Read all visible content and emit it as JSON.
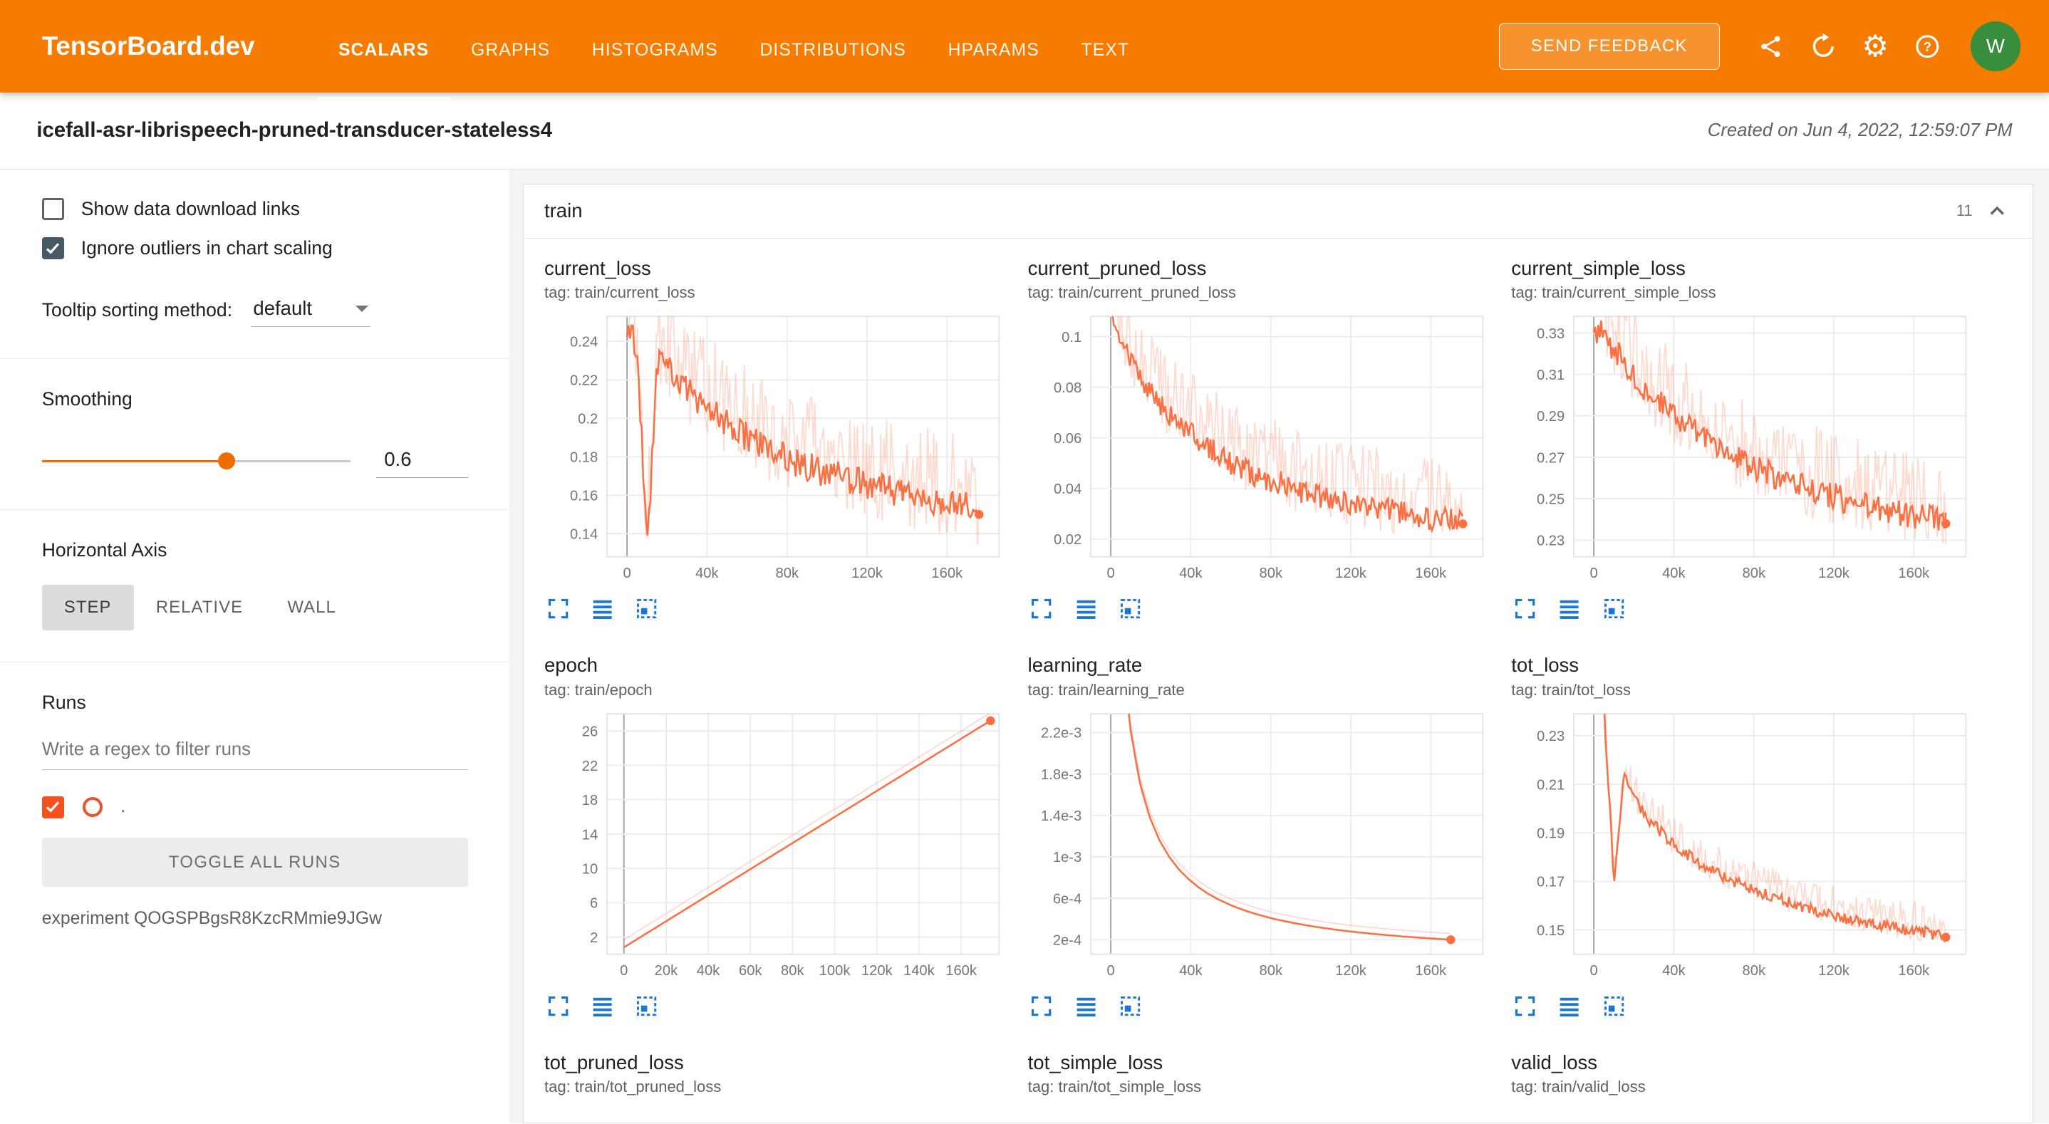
{
  "header": {
    "brand": "TensorBoard.dev",
    "tabs": [
      {
        "label": "SCALARS",
        "active": true
      },
      {
        "label": "GRAPHS",
        "active": false
      },
      {
        "label": "HISTOGRAMS",
        "active": false
      },
      {
        "label": "DISTRIBUTIONS",
        "active": false
      },
      {
        "label": "HPARAMS",
        "active": false
      },
      {
        "label": "TEXT",
        "active": false
      }
    ],
    "feedback_label": "SEND FEEDBACK",
    "avatar_initial": "W"
  },
  "subheader": {
    "title": "icefall-asr-librispeech-pruned-transducer-stateless4",
    "created": "Created on Jun 4, 2022, 12:59:07 PM"
  },
  "sidebar": {
    "checkboxes": [
      {
        "label": "Show data download links",
        "checked": false
      },
      {
        "label": "Ignore outliers in chart scaling",
        "checked": true
      }
    ],
    "tooltip_sorting": {
      "label": "Tooltip sorting method:",
      "value": "default"
    },
    "smoothing": {
      "label": "Smoothing",
      "value": "0.6"
    },
    "horizontal_axis": {
      "label": "Horizontal Axis",
      "options": [
        "STEP",
        "RELATIVE",
        "WALL"
      ],
      "selected": "STEP"
    },
    "runs": {
      "label": "Runs",
      "filter_placeholder": "Write a regex to filter runs",
      "run_label": ".",
      "run_checked": true,
      "toggle_all_label": "TOGGLE ALL RUNS",
      "experiment": "experiment QOGSPBgsR8KzcRMmie9JGw"
    }
  },
  "main": {
    "section": {
      "title": "train",
      "count": "11"
    },
    "charts": [
      {
        "name": "current_loss",
        "tag": "tag: train/current_loss",
        "x_domain": [
          -10000,
          186000
        ],
        "x_end": 176000,
        "y_domain": [
          0.128,
          0.253
        ],
        "y_ticks": [
          [
            0.24,
            "0.24"
          ],
          [
            0.22,
            "0.22"
          ],
          [
            0.2,
            "0.2"
          ],
          [
            0.18,
            "0.18"
          ],
          [
            0.16,
            "0.16"
          ],
          [
            0.14,
            "0.14"
          ]
        ],
        "x_ticks": [
          [
            0,
            "0"
          ],
          [
            40000,
            "40k"
          ],
          [
            80000,
            "80k"
          ],
          [
            120000,
            "120k"
          ],
          [
            160000,
            "160k"
          ]
        ],
        "anchors": [
          0.246,
          0.238,
          0.132,
          0.23,
          0.226,
          0.22,
          0.215,
          0.21,
          0.206,
          0.201,
          0.197,
          0.193,
          0.19,
          0.187,
          0.184,
          0.181,
          0.179,
          0.177,
          0.175,
          0.173,
          0.171,
          0.17,
          0.168,
          0.167,
          0.165,
          0.164,
          0.163,
          0.162,
          0.16,
          0.159,
          0.158,
          0.157,
          0.156,
          0.155,
          0.154,
          0.15
        ],
        "noise": 0.013,
        "raw_bias": 0.01,
        "end_dot": true
      },
      {
        "name": "current_pruned_loss",
        "tag": "tag: train/current_pruned_loss",
        "x_domain": [
          -10000,
          186000
        ],
        "x_end": 176000,
        "y_domain": [
          0.013,
          0.108
        ],
        "y_ticks": [
          [
            0.1,
            "0.1"
          ],
          [
            0.08,
            "0.08"
          ],
          [
            0.06,
            "0.06"
          ],
          [
            0.04,
            "0.04"
          ],
          [
            0.02,
            "0.02"
          ]
        ],
        "x_ticks": [
          [
            0,
            "0"
          ],
          [
            40000,
            "40k"
          ],
          [
            80000,
            "80k"
          ],
          [
            120000,
            "120k"
          ],
          [
            160000,
            "160k"
          ]
        ],
        "anchors": [
          0.112,
          0.1,
          0.091,
          0.084,
          0.078,
          0.073,
          0.068,
          0.064,
          0.061,
          0.058,
          0.055,
          0.053,
          0.05,
          0.048,
          0.046,
          0.045,
          0.043,
          0.042,
          0.04,
          0.039,
          0.038,
          0.037,
          0.036,
          0.035,
          0.034,
          0.033,
          0.032,
          0.032,
          0.031,
          0.03,
          0.03,
          0.029,
          0.028,
          0.028,
          0.027,
          0.026
        ],
        "noise": 0.008,
        "raw_bias": 0.008,
        "end_dot": true
      },
      {
        "name": "current_simple_loss",
        "tag": "tag: train/current_simple_loss",
        "x_domain": [
          -10000,
          186000
        ],
        "x_end": 176000,
        "y_domain": [
          0.222,
          0.338
        ],
        "y_ticks": [
          [
            0.33,
            "0.33"
          ],
          [
            0.31,
            "0.31"
          ],
          [
            0.29,
            "0.29"
          ],
          [
            0.27,
            "0.27"
          ],
          [
            0.25,
            "0.25"
          ],
          [
            0.23,
            "0.23"
          ]
        ],
        "x_ticks": [
          [
            0,
            "0"
          ],
          [
            40000,
            "40k"
          ],
          [
            80000,
            "80k"
          ],
          [
            120000,
            "120k"
          ],
          [
            160000,
            "160k"
          ]
        ],
        "anchors": [
          0.333,
          0.328,
          0.322,
          0.316,
          0.31,
          0.304,
          0.299,
          0.294,
          0.29,
          0.286,
          0.282,
          0.279,
          0.276,
          0.273,
          0.27,
          0.268,
          0.265,
          0.263,
          0.261,
          0.259,
          0.257,
          0.255,
          0.254,
          0.252,
          0.251,
          0.249,
          0.248,
          0.247,
          0.246,
          0.245,
          0.244,
          0.243,
          0.242,
          0.241,
          0.24,
          0.238
        ],
        "noise": 0.011,
        "raw_bias": 0.009,
        "end_dot": true
      },
      {
        "name": "epoch",
        "tag": "tag: train/epoch",
        "x_domain": [
          -8000,
          178000
        ],
        "x_end": 174000,
        "y_domain": [
          0,
          28
        ],
        "y_ticks": [
          [
            26,
            "26"
          ],
          [
            22,
            "22"
          ],
          [
            18,
            "18"
          ],
          [
            14,
            "14"
          ],
          [
            10,
            "10"
          ],
          [
            6,
            "6"
          ],
          [
            2,
            "2"
          ]
        ],
        "x_ticks": [
          [
            0,
            "0"
          ],
          [
            20000,
            "20k"
          ],
          [
            40000,
            "40k"
          ],
          [
            60000,
            "60k"
          ],
          [
            80000,
            "80k"
          ],
          [
            100000,
            "100k"
          ],
          [
            120000,
            "120k"
          ],
          [
            140000,
            "140k"
          ],
          [
            160000,
            "160k"
          ]
        ],
        "anchors": [
          0.8,
          1.55,
          2.31,
          3.06,
          3.82,
          4.57,
          5.33,
          6.08,
          6.84,
          7.59,
          8.35,
          9.1,
          9.86,
          10.61,
          11.37,
          12.12,
          12.88,
          13.63,
          14.39,
          15.14,
          15.9,
          16.65,
          17.41,
          18.16,
          18.92,
          19.67,
          20.43,
          21.18,
          21.94,
          22.69,
          23.45,
          24.2,
          24.96,
          25.71,
          26.47,
          27.2
        ],
        "noise": 0,
        "raw_bias": 0.9,
        "end_dot": true
      },
      {
        "name": "learning_rate",
        "tag": "tag: train/learning_rate",
        "x_domain": [
          -10000,
          186000
        ],
        "x_end": 170000,
        "y_domain": [
          6e-05,
          0.00238
        ],
        "y_ticks": [
          [
            0.0022,
            "2.2e-3"
          ],
          [
            0.0018,
            "1.8e-3"
          ],
          [
            0.0014,
            "1.4e-3"
          ],
          [
            0.001,
            "1e-3"
          ],
          [
            0.0006,
            "6e-4"
          ],
          [
            0.0002,
            "2e-4"
          ]
        ],
        "x_ticks": [
          [
            0,
            "0"
          ],
          [
            40000,
            "40k"
          ],
          [
            80000,
            "80k"
          ],
          [
            120000,
            "120k"
          ],
          [
            160000,
            "160k"
          ]
        ],
        "anchors": [
          0.00587,
          0.00324,
          0.00224,
          0.00171,
          0.001385,
          0.001162,
          0.001001,
          0.00088,
          0.000785,
          0.000708,
          0.000645,
          0.000592,
          0.000548,
          0.000509,
          0.000476,
          0.000446,
          0.00042,
          0.000397,
          0.000377,
          0.000358,
          0.000341,
          0.000326,
          0.000312,
          0.000299,
          0.000287,
          0.000276,
          0.000266,
          0.000257,
          0.000248,
          0.00024,
          0.000232,
          0.000225,
          0.000218,
          0.000212,
          0.000206,
          0.0002
        ],
        "noise": 0,
        "raw_bias": 6e-05,
        "end_dot": true
      },
      {
        "name": "tot_loss",
        "tag": "tag: train/tot_loss",
        "x_domain": [
          -10000,
          186000
        ],
        "x_end": 176000,
        "y_domain": [
          0.14,
          0.239
        ],
        "y_ticks": [
          [
            0.23,
            "0.23"
          ],
          [
            0.21,
            "0.21"
          ],
          [
            0.19,
            "0.19"
          ],
          [
            0.17,
            "0.17"
          ],
          [
            0.15,
            "0.15"
          ]
        ],
        "x_ticks": [
          [
            0,
            "0"
          ],
          [
            40000,
            "40k"
          ],
          [
            80000,
            "80k"
          ],
          [
            120000,
            "120k"
          ],
          [
            160000,
            "160k"
          ]
        ],
        "anchors": [
          0.25,
          0.242,
          0.17,
          0.213,
          0.204,
          0.198,
          0.193,
          0.189,
          0.185,
          0.182,
          0.179,
          0.176,
          0.174,
          0.172,
          0.17,
          0.168,
          0.166,
          0.165,
          0.163,
          0.162,
          0.16,
          0.159,
          0.158,
          0.157,
          0.156,
          0.155,
          0.154,
          0.153,
          0.152,
          0.152,
          0.151,
          0.15,
          0.15,
          0.149,
          0.148,
          0.147
        ],
        "noise": 0.004,
        "raw_bias": 0.004,
        "end_dot": true
      },
      {
        "name": "tot_pruned_loss",
        "tag": "tag: train/tot_pruned_loss"
      },
      {
        "name": "tot_simple_loss",
        "tag": "tag: train/tot_simple_loss"
      },
      {
        "name": "valid_loss",
        "tag": "tag: train/valid_loss"
      }
    ]
  },
  "colors": {
    "header_orange": "#f57c00",
    "line": "#fb7042",
    "raw_line_opacity": "0.25",
    "icon_blue": "#1976d2",
    "avatar_green": "#388e3c",
    "run_checkbox": "#f4511e",
    "run_swatch": "#e8542c"
  }
}
